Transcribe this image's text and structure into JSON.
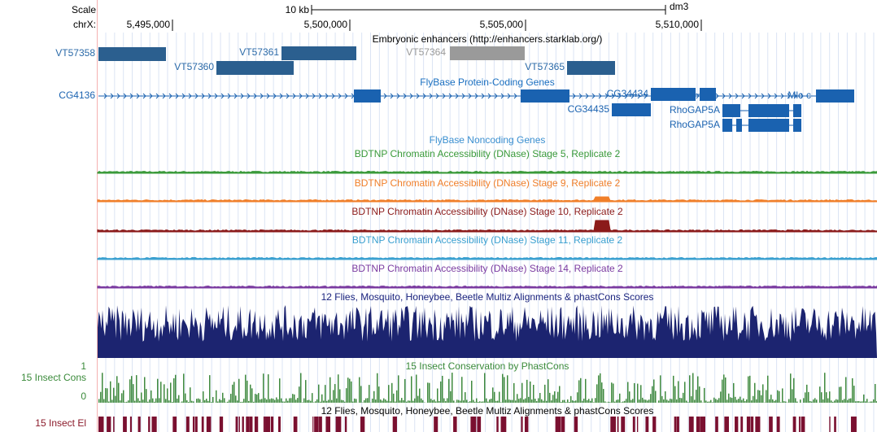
{
  "scale": {
    "label": "Scale",
    "length": "10 kb",
    "assembly": "dm3"
  },
  "position": {
    "chrom": "chrX:",
    "ticks": [
      "5,495,000",
      "5,500,000",
      "5,505,000",
      "5,510,000"
    ]
  },
  "tracks": {
    "enhancers": {
      "title": "Embryonic enhancers (http://enhancers.starklab.org/)",
      "items": [
        "VT57358",
        "VT57360",
        "VT57361",
        "VT57364",
        "VT57365"
      ]
    },
    "coding_genes": {
      "title": "FlyBase Protein-Coding Genes",
      "items": [
        "CG4136",
        "CG34434",
        "Mlc-c",
        "CG34435",
        "RhoGAP5A",
        "RhoGAP5A"
      ]
    },
    "noncoding_genes": {
      "title": "FlyBase Noncoding Genes"
    },
    "dnase": [
      "BDTNP Chromatin Accessibility (DNase) Stage 5, Replicate 2",
      "BDTNP Chromatin Accessibility (DNase) Stage 9, Replicate 2",
      "BDTNP Chromatin Accessibility (DNase) Stage 10, Replicate 2",
      "BDTNP Chromatin Accessibility (DNase) Stage 11, Replicate 2",
      "BDTNP Chromatin Accessibility (DNase) Stage 14, Replicate 2"
    ],
    "multiz": {
      "title": "12 Flies, Mosquito, Honeybee, Beetle Multiz Alignments & phastCons Scores"
    },
    "phastcons": {
      "title": "15 Insect Conservation by PhastCons",
      "label": "15 Insect Cons",
      "max": "1",
      "min": "0"
    },
    "elements": {
      "title": "12 Flies, Mosquito, Honeybee, Beetle Multiz Alignments & phastCons Scores",
      "label": "15 Insect El"
    }
  }
}
